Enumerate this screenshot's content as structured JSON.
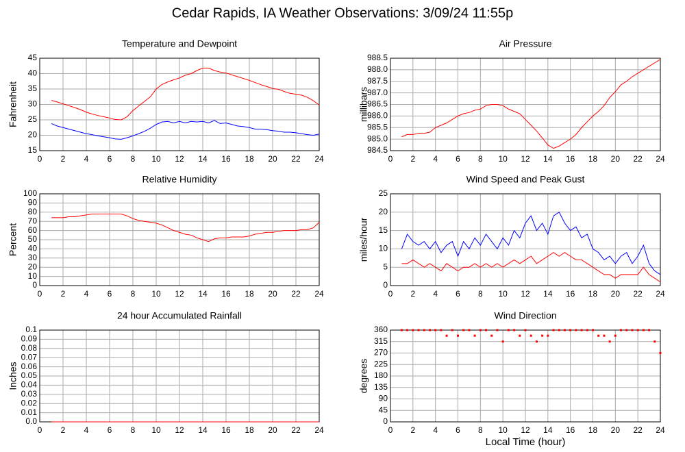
{
  "title": "Cedar Rapids, IA Weather Observations: 3/09/24 11:55p",
  "chart_data": [
    {
      "type": "line",
      "title": "Temperature and Dewpoint",
      "ylabel": "Fahrenheit",
      "x": [
        1,
        1.5,
        2,
        2.5,
        3,
        3.5,
        4,
        4.5,
        5,
        5.5,
        6,
        6.5,
        7,
        7.5,
        8,
        8.5,
        9,
        9.5,
        10,
        10.5,
        11,
        11.5,
        12,
        12.5,
        13,
        13.5,
        14,
        14.5,
        15,
        15.5,
        16,
        16.5,
        17,
        17.5,
        18,
        18.5,
        19,
        19.5,
        20,
        20.5,
        21,
        21.5,
        22,
        22.5,
        23,
        23.5,
        24
      ],
      "series": [
        {
          "color": "#ff0000",
          "values": [
            31.3,
            30.8,
            30.2,
            29.6,
            29,
            28.3,
            27.5,
            26.9,
            26.4,
            26,
            25.6,
            25.1,
            25,
            26,
            28,
            29.5,
            31,
            32.5,
            35,
            36.5,
            37.3,
            38,
            38.6,
            39.5,
            40,
            41,
            41.8,
            41.8,
            41,
            40.5,
            40.2,
            39.6,
            39,
            38.4,
            37.8,
            37.1,
            36.4,
            35.8,
            35.2,
            34.9,
            34.2,
            33.6,
            33.3,
            33,
            32.3,
            31.2,
            29.8
          ]
        },
        {
          "color": "#0000ff",
          "values": [
            23.8,
            23,
            22.5,
            22,
            21.5,
            21,
            20.5,
            20.2,
            19.8,
            19.5,
            19.2,
            18.8,
            18.7,
            19.2,
            19.8,
            20.5,
            21.3,
            22.3,
            23.5,
            24.3,
            24.5,
            24,
            24.5,
            24,
            24.5,
            24.3,
            24.5,
            24,
            24.8,
            23.8,
            24,
            23.5,
            23,
            22.8,
            22.5,
            22,
            22,
            21.8,
            21.5,
            21.3,
            21,
            21,
            20.8,
            20.5,
            20.2,
            20,
            20.4
          ]
        }
      ],
      "xlim": [
        0,
        24
      ],
      "xticks": [
        0,
        2,
        4,
        6,
        8,
        10,
        12,
        14,
        16,
        18,
        20,
        22,
        24
      ],
      "ylim": [
        15,
        45
      ],
      "yticks": [
        15,
        20,
        25,
        30,
        35,
        40,
        45
      ],
      "grid": true
    },
    {
      "type": "line",
      "title": "Air Pressure",
      "ylabel": "millibars",
      "x": [
        1,
        1.5,
        2,
        2.5,
        3,
        3.5,
        4,
        4.5,
        5,
        5.5,
        6,
        6.5,
        7,
        7.5,
        8,
        8.5,
        9,
        9.5,
        10,
        10.5,
        11,
        11.5,
        12,
        12.5,
        13,
        13.5,
        14,
        14.5,
        15,
        15.5,
        16,
        16.5,
        17,
        17.5,
        18,
        18.5,
        19,
        19.5,
        20,
        20.5,
        21,
        21.5,
        22,
        22.5,
        23,
        23.5,
        24
      ],
      "series": [
        {
          "color": "#ff0000",
          "values": [
            985.1,
            985.2,
            985.2,
            985.25,
            985.25,
            985.3,
            985.5,
            985.6,
            985.7,
            985.85,
            986.0,
            986.1,
            986.15,
            986.25,
            986.3,
            986.45,
            986.5,
            986.5,
            986.45,
            986.3,
            986.2,
            986.1,
            985.85,
            985.6,
            985.35,
            985.05,
            984.75,
            984.6,
            984.7,
            984.85,
            985.0,
            985.2,
            985.5,
            985.75,
            986.0,
            986.2,
            986.45,
            986.8,
            987.05,
            987.35,
            987.5,
            987.7,
            987.85,
            988.0,
            988.15,
            988.3,
            988.45
          ]
        }
      ],
      "xlim": [
        0,
        24
      ],
      "xticks": [
        0,
        2,
        4,
        6,
        8,
        10,
        12,
        14,
        16,
        18,
        20,
        22,
        24
      ],
      "ylim": [
        984.5,
        988.5
      ],
      "yticks": [
        984.5,
        {
          "value": 985,
          "label": "985.0"
        },
        985.5,
        {
          "value": 986,
          "label": "986.0"
        },
        986.5,
        {
          "value": 987,
          "label": "987.0"
        },
        987.5,
        {
          "value": 988,
          "label": "988.0"
        },
        988.5
      ],
      "grid": true
    },
    {
      "type": "line",
      "title": "Relative Humidity",
      "ylabel": "Percent",
      "x": [
        1,
        1.5,
        2,
        2.5,
        3,
        3.5,
        4,
        4.5,
        5,
        5.5,
        6,
        6.5,
        7,
        7.5,
        8,
        8.5,
        9,
        9.5,
        10,
        10.5,
        11,
        11.5,
        12,
        12.5,
        13,
        13.5,
        14,
        14.5,
        15,
        15.5,
        16,
        16.5,
        17,
        17.5,
        18,
        18.5,
        19,
        19.5,
        20,
        20.5,
        21,
        21.5,
        22,
        22.5,
        23,
        23.5,
        24
      ],
      "series": [
        {
          "color": "#ff0000",
          "values": [
            74,
            74,
            74,
            75,
            75,
            76,
            77,
            78,
            78,
            78,
            78,
            78,
            78,
            76,
            73,
            71,
            70,
            69,
            68,
            66,
            63,
            60,
            58,
            56,
            55,
            52,
            50,
            48,
            51,
            52,
            52,
            53,
            53,
            53,
            54,
            56,
            57,
            58,
            58,
            59,
            60,
            60,
            60,
            61,
            61,
            63,
            69
          ]
        }
      ],
      "xlim": [
        0,
        24
      ],
      "xticks": [
        0,
        2,
        4,
        6,
        8,
        10,
        12,
        14,
        16,
        18,
        20,
        22,
        24
      ],
      "ylim": [
        0,
        100
      ],
      "yticks": [
        0,
        10,
        20,
        30,
        40,
        50,
        60,
        70,
        80,
        90,
        100
      ],
      "grid": true
    },
    {
      "type": "line",
      "title": "Wind Speed and Peak Gust",
      "ylabel": "miles/hour",
      "x": [
        1,
        1.5,
        2,
        2.5,
        3,
        3.5,
        4,
        4.5,
        5,
        5.5,
        6,
        6.5,
        7,
        7.5,
        8,
        8.5,
        9,
        9.5,
        10,
        10.5,
        11,
        11.5,
        12,
        12.5,
        13,
        13.5,
        14,
        14.5,
        15,
        15.5,
        16,
        16.5,
        17,
        17.5,
        18,
        18.5,
        19,
        19.5,
        20,
        20.5,
        21,
        21.5,
        22,
        22.5,
        23,
        23.5,
        24
      ],
      "series": [
        {
          "color": "#0000ff",
          "values": [
            10,
            14,
            12,
            11,
            12,
            10,
            12,
            9,
            11,
            12,
            8,
            12,
            10,
            13,
            11,
            14,
            12,
            10,
            13,
            11,
            15,
            13,
            17,
            19,
            15,
            17,
            14,
            19,
            20,
            17,
            15,
            16,
            13,
            14,
            10,
            9,
            7,
            8,
            6,
            8,
            9,
            6,
            8,
            11,
            6,
            4,
            3
          ]
        },
        {
          "color": "#ff0000",
          "values": [
            6,
            6,
            7,
            6,
            5,
            6,
            5,
            4,
            6,
            5,
            4,
            5,
            5,
            6,
            5,
            6,
            5,
            6,
            5,
            6,
            7,
            6,
            7,
            8,
            6,
            7,
            8,
            9,
            8,
            9,
            8,
            7,
            7,
            6,
            5,
            4,
            3,
            3,
            2,
            3,
            3,
            3,
            3,
            5,
            3,
            2,
            1
          ]
        }
      ],
      "xlim": [
        0,
        24
      ],
      "xticks": [
        0,
        2,
        4,
        6,
        8,
        10,
        12,
        14,
        16,
        18,
        20,
        22,
        24
      ],
      "ylim": [
        0,
        25
      ],
      "yticks": [
        0,
        5,
        10,
        15,
        20,
        25
      ],
      "grid": true
    },
    {
      "type": "line",
      "title": "24 hour Accumulated Rainfall",
      "ylabel": "Inches",
      "x": [
        1,
        24
      ],
      "series": [
        {
          "color": "#ff0000",
          "values": [
            0,
            0
          ]
        }
      ],
      "xlim": [
        0,
        24
      ],
      "xticks": [
        0,
        2,
        4,
        6,
        8,
        10,
        12,
        14,
        16,
        18,
        20,
        22,
        24
      ],
      "ylim": [
        0,
        0.1
      ],
      "yticks": [
        {
          "value": 0,
          "label": "0.0"
        },
        0.01,
        0.02,
        0.03,
        0.04,
        0.05,
        0.06,
        0.07,
        0.08,
        0.09,
        0.1
      ],
      "grid": true
    },
    {
      "type": "scatter",
      "title": "Wind Direction",
      "ylabel": "degrees",
      "xlabel": "Local Time (hour)",
      "x": [
        1,
        1.5,
        2,
        2.5,
        3,
        3.5,
        4,
        4.5,
        5,
        5.5,
        6,
        6.5,
        7,
        7.5,
        8,
        8.5,
        9,
        9.5,
        10,
        10.5,
        11,
        11.5,
        12,
        12.5,
        13,
        13.5,
        14,
        14.5,
        15,
        15.5,
        16,
        16.5,
        17,
        17.5,
        18,
        18.5,
        19,
        19.5,
        20,
        20.5,
        21,
        21.5,
        22,
        22.5,
        23,
        23.5,
        24
      ],
      "series": [
        {
          "color": "#ff0000",
          "values": [
            360,
            360,
            360,
            360,
            360,
            360,
            360,
            360,
            338,
            360,
            338,
            360,
            360,
            338,
            360,
            360,
            338,
            360,
            315,
            360,
            360,
            338,
            360,
            338,
            315,
            338,
            338,
            360,
            360,
            360,
            360,
            360,
            360,
            360,
            360,
            338,
            338,
            315,
            338,
            360,
            360,
            360,
            360,
            360,
            360,
            315,
            270
          ]
        }
      ],
      "xlim": [
        0,
        24
      ],
      "xticks": [
        0,
        2,
        4,
        6,
        8,
        10,
        12,
        14,
        16,
        18,
        20,
        22,
        24
      ],
      "ylim": [
        0,
        360
      ],
      "yticks": [
        0,
        45,
        90,
        135,
        180,
        225,
        270,
        315,
        360
      ],
      "grid": true
    }
  ]
}
